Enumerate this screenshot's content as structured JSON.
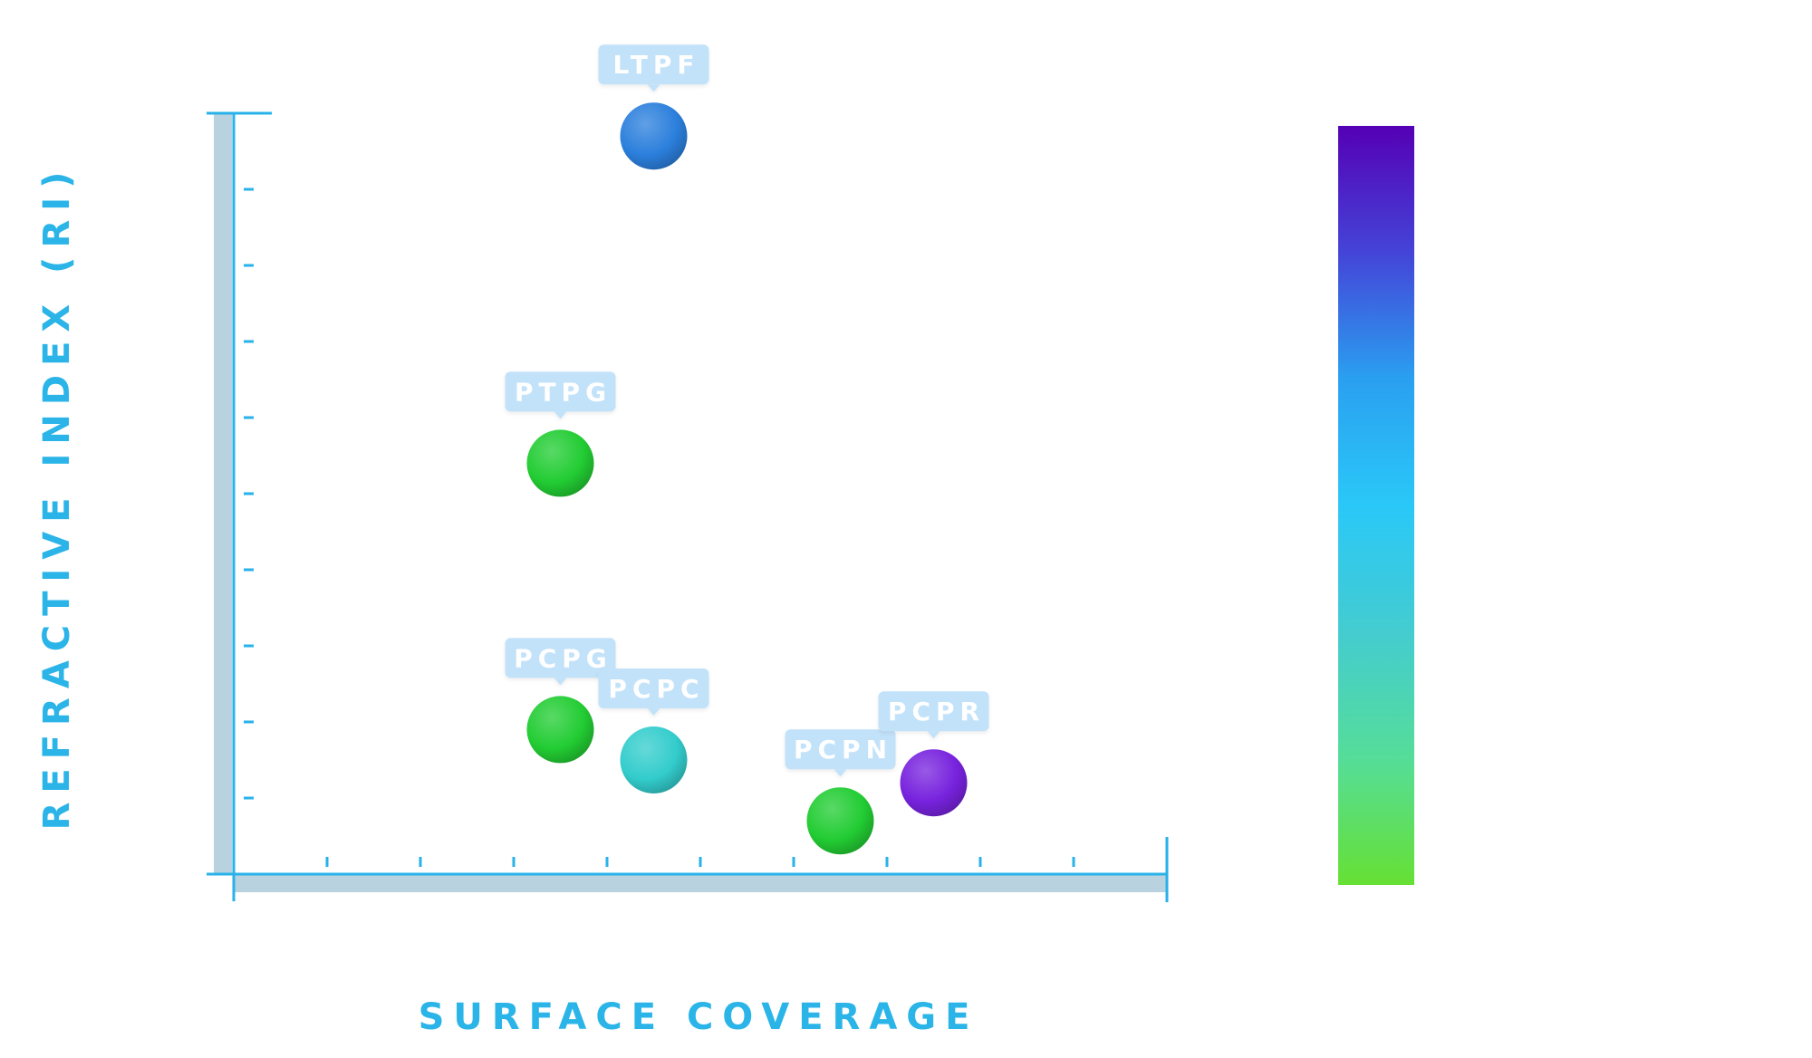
{
  "chart_data": {
    "type": "scatter",
    "title": "",
    "xlabel": "SURFACE COVERAGE",
    "ylabel": "REFRACTIVE INDEX (RI)",
    "x_ticks": 10,
    "y_ticks": 10,
    "xlim": [
      0,
      10
    ],
    "ylim": [
      0,
      10
    ],
    "grid": false,
    "points": [
      {
        "label": "LTPF",
        "x": 4.5,
        "y": 9.7,
        "color": "#2b7fdc"
      },
      {
        "label": "PTPG",
        "x": 3.5,
        "y": 5.4,
        "color": "#22cc33"
      },
      {
        "label": "PCPG",
        "x": 3.5,
        "y": 1.9,
        "color": "#22cc33"
      },
      {
        "label": "PCPC",
        "x": 4.5,
        "y": 1.5,
        "color": "#33cccc"
      },
      {
        "label": "PCPN",
        "x": 6.5,
        "y": 0.7,
        "color": "#22cc33"
      },
      {
        "label": "PCPR",
        "x": 7.5,
        "y": 1.2,
        "color": "#7722dd"
      }
    ],
    "colorbar": {
      "colors": [
        "#5500b4",
        "#4444d8",
        "#2aa0f0",
        "#2ac8f8",
        "#44ccd0",
        "#55dd99",
        "#66e033"
      ]
    }
  }
}
